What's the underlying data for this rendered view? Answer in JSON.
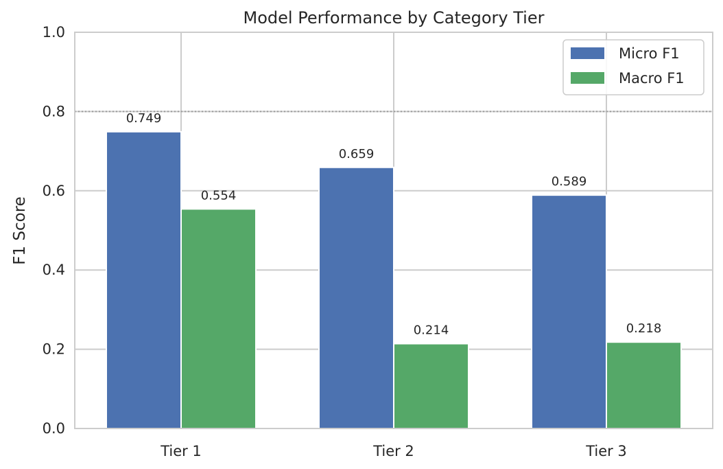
{
  "chart_data": {
    "type": "bar",
    "title": "Model Performance by Category Tier",
    "xlabel": "",
    "ylabel": "F1 Score",
    "categories": [
      "Tier 1",
      "Tier 2",
      "Tier 3"
    ],
    "series": [
      {
        "name": "Micro F1",
        "values": [
          0.749,
          0.659,
          0.589
        ],
        "labels": [
          "0.749",
          "0.659",
          "0.589"
        ],
        "color": "#4c72b0"
      },
      {
        "name": "Macro F1",
        "values": [
          0.554,
          0.214,
          0.218
        ],
        "labels": [
          "0.554",
          "0.214",
          "0.218"
        ],
        "color": "#55a868"
      }
    ],
    "ylim": [
      0,
      1.0
    ],
    "yticks": [
      "0.0",
      "0.2",
      "0.4",
      "0.6",
      "0.8",
      "1.0"
    ],
    "reference_line": {
      "y": 0.8,
      "style": "dotted",
      "color": "#999999"
    },
    "grid": true,
    "legend": "top-right",
    "colors": {
      "grid": "#cccccc",
      "frame": "#cccccc",
      "text": "#262626"
    }
  }
}
